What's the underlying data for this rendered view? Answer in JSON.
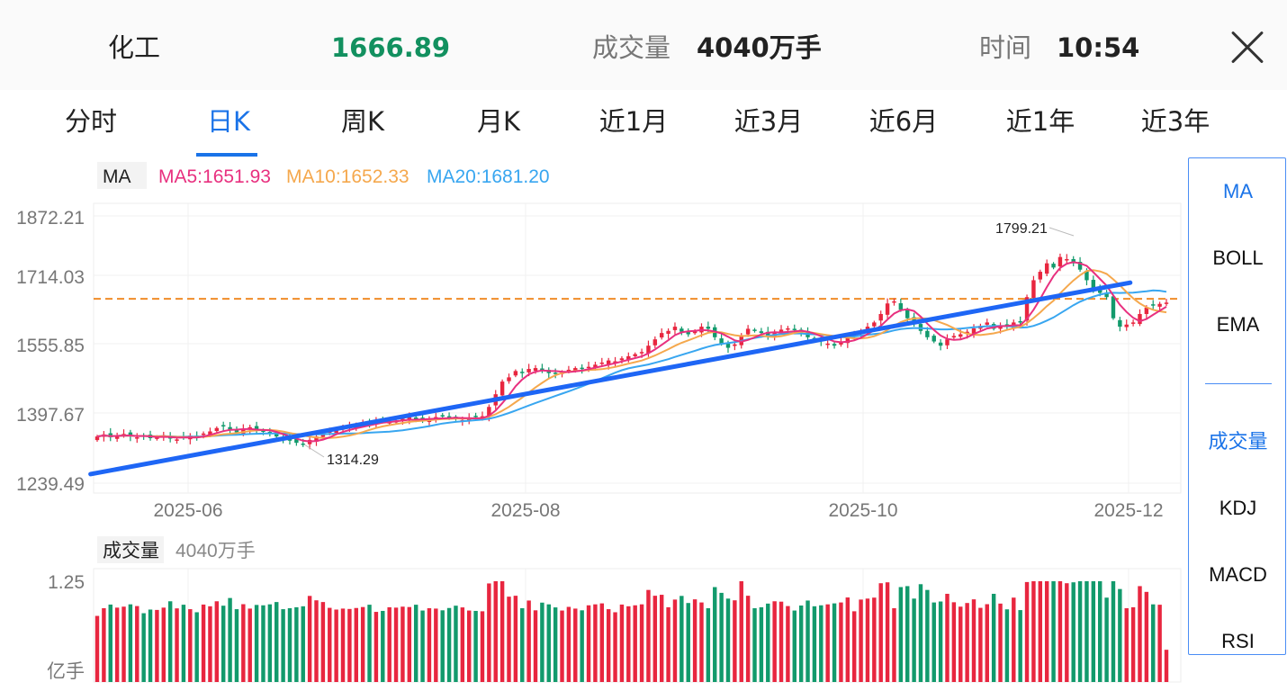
{
  "header": {
    "name": "化工",
    "price": "1666.89",
    "volume_label": "成交量",
    "volume_value": "4040万手",
    "time_label": "时间",
    "time_value": "10:54"
  },
  "tabs": [
    "分时",
    "日K",
    "周K",
    "月K",
    "近1月",
    "近3月",
    "近6月",
    "近1年",
    "近3年"
  ],
  "active_tab": "日K",
  "legend": {
    "ma": "MA",
    "ma5": "MA5:1651.93",
    "ma10": "MA10:1652.33",
    "ma20": "MA20:1681.20"
  },
  "sidebar": {
    "main_indicators": [
      "MA",
      "BOLL",
      "EMA"
    ],
    "sub_indicators": [
      "成交量",
      "KDJ",
      "MACD",
      "RSI"
    ]
  },
  "volume_panel": {
    "label": "成交量",
    "value": "4040万手",
    "axis_max": "1.25",
    "unit": "亿手"
  },
  "colors": {
    "up": "#e8263f",
    "down": "#129a6c",
    "ma5": "#e8307f",
    "ma10": "#f5a84d",
    "ma20": "#38a6f0",
    "trendline": "#1e66f5",
    "price_green": "#12905f",
    "accent": "#1a73e8",
    "dashed": "#f08c28"
  },
  "chart_data": {
    "type": "candlestick",
    "y_ticks": [
      "1872.21",
      "1714.03",
      "1555.85",
      "1397.67",
      "1239.49"
    ],
    "ylim": [
      1239.49,
      1872.21
    ],
    "x_ticks": [
      "2025-06",
      "2025-08",
      "2025-10",
      "2025-12"
    ],
    "annotations": {
      "max": "1799.21",
      "min": "1314.29"
    },
    "reference_price": 1676,
    "volume_max": 1.25,
    "trend_line": {
      "from": {
        "day": -1,
        "price": 1261
      },
      "to": {
        "day": 142,
        "price": 1675
      }
    },
    "closes": [
      1350,
      1355,
      1348,
      1352,
      1356,
      1351,
      1348,
      1350,
      1346,
      1349,
      1353,
      1345,
      1343,
      1347,
      1352,
      1350,
      1357,
      1362,
      1370,
      1374,
      1365,
      1360,
      1368,
      1372,
      1366,
      1361,
      1356,
      1350,
      1345,
      1340,
      1335,
      1330,
      1342,
      1350,
      1356,
      1362,
      1366,
      1370,
      1373,
      1376,
      1379,
      1383,
      1386,
      1389,
      1384,
      1388,
      1392,
      1395,
      1391,
      1387,
      1392,
      1396,
      1398,
      1395,
      1391,
      1389,
      1393,
      1396,
      1398,
      1420,
      1450,
      1480,
      1490,
      1505,
      1500,
      1510,
      1512,
      1505,
      1500,
      1498,
      1502,
      1508,
      1512,
      1510,
      1515,
      1520,
      1525,
      1530,
      1528,
      1535,
      1540,
      1545,
      1550,
      1565,
      1580,
      1595,
      1600,
      1610,
      1598,
      1592,
      1600,
      1610,
      1605,
      1585,
      1570,
      1560,
      1568,
      1590,
      1605,
      1600,
      1595,
      1588,
      1596,
      1603,
      1606,
      1602,
      1595,
      1585,
      1580,
      1575,
      1570,
      1565,
      1575,
      1588,
      1590,
      1600,
      1610,
      1620,
      1640,
      1665,
      1670,
      1650,
      1630,
      1620,
      1600,
      1585,
      1575,
      1565,
      1580,
      1588,
      1592,
      1598,
      1606,
      1612,
      1620,
      1605,
      1612,
      1610,
      1620,
      1620,
      1680,
      1720,
      1740,
      1760,
      1750,
      1775,
      1770,
      1760,
      1745,
      1720,
      1700,
      1690,
      1680,
      1630,
      1610,
      1615,
      1620,
      1640,
      1655,
      1660,
      1664,
      1667
    ]
  }
}
